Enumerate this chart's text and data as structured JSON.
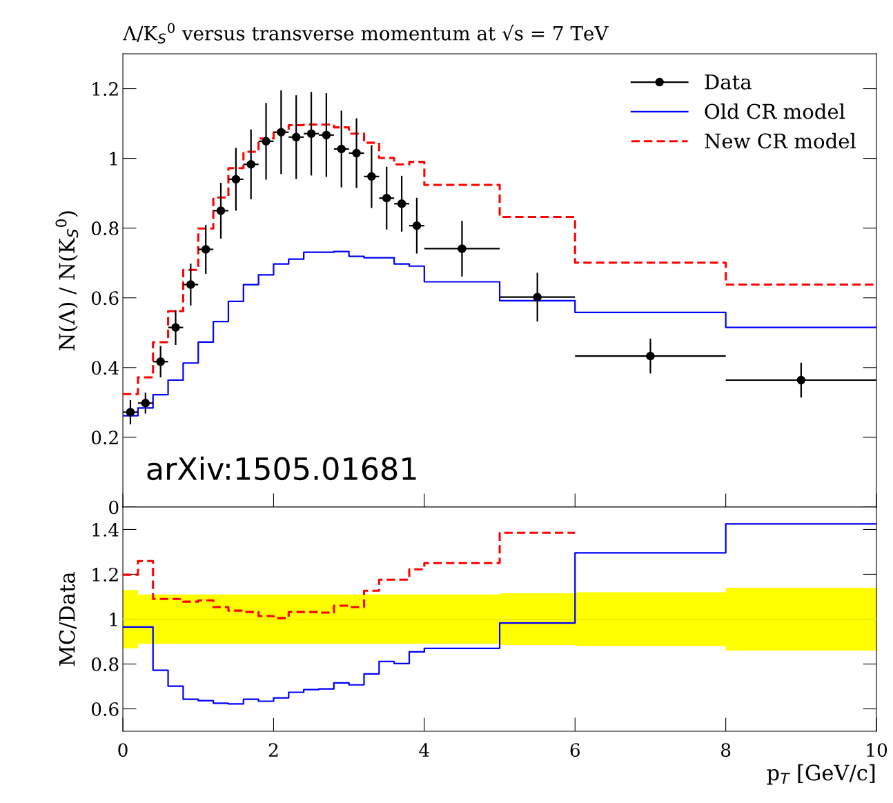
{
  "chart_data": [
    {
      "type": "step",
      "title": "Λ/K$_{S}$$^{0}$ versus transverse momentum at √s = 7 TeV",
      "ylabel": "N(Λ) / N(K$_{S}$$^{0}$)",
      "xlim": [
        0,
        10
      ],
      "xticks": [
        0,
        2,
        4,
        6,
        8,
        10
      ],
      "ylim": [
        0,
        1.3
      ],
      "yticks": [
        0,
        0.2,
        0.4,
        0.6,
        0.8,
        1,
        1.2
      ],
      "tick_labels": "y",
      "legend": "top right",
      "annotations": [
        "arXiv:1505.01681"
      ],
      "series": [
        {
          "name": "Data",
          "type": "scatter",
          "color": "#000000",
          "marker": "circle",
          "x": [
            0.1,
            0.3,
            0.5,
            0.7,
            0.9,
            1.1,
            1.3,
            1.5,
            1.7,
            1.9,
            2.1,
            2.3,
            2.5,
            2.7,
            2.9,
            3.1,
            3.3,
            3.5,
            3.7,
            3.9,
            4.5,
            5.5,
            7,
            9
          ],
          "values": [
            0.272,
            0.298,
            0.417,
            0.515,
            0.638,
            0.739,
            0.85,
            0.94,
            0.983,
            1.049,
            1.075,
            1.061,
            1.071,
            1.067,
            1.027,
            1.015,
            0.948,
            0.886,
            0.87,
            0.807,
            0.741,
            0.602,
            0.433,
            0.364
          ],
          "errors": [
            0.035,
            0.03,
            0.045,
            0.05,
            0.06,
            0.07,
            0.08,
            0.09,
            0.1,
            0.11,
            0.12,
            0.12,
            0.12,
            0.12,
            0.11,
            0.1,
            0.09,
            0.09,
            0.08,
            0.08,
            0.08,
            0.07,
            0.05,
            0.05
          ],
          "xerrors": [
            0.1,
            0.1,
            0.1,
            0.1,
            0.1,
            0.1,
            0.1,
            0.1,
            0.1,
            0.1,
            0.1,
            0.1,
            0.1,
            0.1,
            0.1,
            0.1,
            0.1,
            0.1,
            0.1,
            0.1,
            0.5,
            0.5,
            1,
            1
          ]
        },
        {
          "name": "Old CR model",
          "color": "#0000ff",
          "line_style": "solid",
          "x": [
            0,
            0.2,
            0.4,
            0.6,
            0.8,
            1.0,
            1.2,
            1.4,
            1.6,
            1.8,
            2.0,
            2.2,
            2.4,
            2.6,
            2.8,
            3.0,
            3.2,
            3.4,
            3.6,
            3.8,
            4,
            5,
            6,
            8,
            10
          ],
          "values": [
            0.262,
            0.284,
            0.322,
            0.364,
            0.413,
            0.473,
            0.532,
            0.59,
            0.638,
            0.666,
            0.697,
            0.711,
            0.731,
            0.731,
            0.733,
            0.719,
            0.715,
            0.715,
            0.697,
            0.691,
            0.646,
            0.592,
            0.558,
            0.515,
            0.515
          ]
        },
        {
          "name": "New CR model",
          "color": "#ff0000",
          "line_style": "dashed",
          "x": [
            0,
            0.2,
            0.4,
            0.6,
            0.8,
            1.0,
            1.2,
            1.4,
            1.6,
            1.8,
            2.0,
            2.2,
            2.4,
            2.6,
            2.8,
            3.0,
            3.2,
            3.4,
            3.6,
            3.8,
            4,
            5,
            6,
            8,
            10
          ],
          "values": [
            0.324,
            0.372,
            0.473,
            0.562,
            0.68,
            0.799,
            0.888,
            0.972,
            1.019,
            1.057,
            1.079,
            1.095,
            1.097,
            1.097,
            1.089,
            1.071,
            1.045,
            1.001,
            0.983,
            0.99,
            0.924,
            0.832,
            0.701,
            0.638,
            0.638
          ]
        }
      ]
    },
    {
      "type": "step",
      "ylabel": "MC/Data",
      "xlabel": "p$_{T}$ [GeV/c]",
      "xlim": [
        0,
        10
      ],
      "xticks": [
        0,
        2,
        4,
        6,
        8,
        10
      ],
      "ylim": [
        0.5,
        1.5
      ],
      "yticks": [
        0.6,
        0.8,
        1,
        1.2,
        1.4
      ],
      "ref_lines": [
        {
          "axis": "y",
          "value": 1,
          "color": "#000000"
        }
      ],
      "series": [
        {
          "color": "#ffff00",
          "line_style": "solid",
          "x": [
            0,
            0.2,
            0.4,
            0.6,
            0.8,
            1.0,
            1.2,
            1.4,
            1.6,
            1.8,
            2.0,
            2.2,
            2.4,
            2.6,
            2.8,
            3.0,
            3.2,
            3.4,
            3.6,
            3.8,
            4,
            5,
            6,
            8,
            10
          ],
          "values": [
            1,
            1,
            1,
            1,
            1,
            1,
            1,
            1,
            1,
            1,
            1,
            1,
            1,
            1,
            1,
            1,
            1,
            1,
            1,
            1,
            1,
            1,
            1,
            1,
            1
          ],
          "lower": [
            0.87,
            0.89,
            0.89,
            0.89,
            0.89,
            0.89,
            0.89,
            0.89,
            0.89,
            0.89,
            0.89,
            0.89,
            0.89,
            0.89,
            0.89,
            0.89,
            0.89,
            0.89,
            0.89,
            0.89,
            0.89,
            0.885,
            0.88,
            0.86,
            0.86
          ],
          "upper": [
            1.13,
            1.11,
            1.11,
            1.11,
            1.11,
            1.11,
            1.11,
            1.11,
            1.11,
            1.11,
            1.11,
            1.11,
            1.11,
            1.11,
            1.11,
            1.11,
            1.11,
            1.11,
            1.11,
            1.11,
            1.11,
            1.115,
            1.12,
            1.14,
            1.14
          ]
        },
        {
          "color": "#0000ff",
          "line_style": "solid",
          "x": [
            0,
            0.2,
            0.4,
            0.6,
            0.8,
            1.0,
            1.2,
            1.4,
            1.6,
            1.8,
            2.0,
            2.2,
            2.4,
            2.6,
            2.8,
            3.0,
            3.2,
            3.4,
            3.6,
            3.8,
            4,
            5,
            6,
            8,
            10
          ],
          "values": [
            0.965,
            0.965,
            0.772,
            0.701,
            0.643,
            0.637,
            0.625,
            0.622,
            0.643,
            0.634,
            0.649,
            0.674,
            0.686,
            0.689,
            0.716,
            0.707,
            0.756,
            0.811,
            0.802,
            0.854,
            0.87,
            0.983,
            1.296,
            1.425,
            1.425
          ]
        },
        {
          "color": "#ff0000",
          "line_style": "dashed",
          "x": [
            0,
            0.2,
            0.4,
            0.6,
            0.8,
            1.0,
            1.2,
            1.4,
            1.6,
            1.8,
            2.0,
            2.2,
            2.4,
            2.6,
            2.8,
            3.0,
            3.2,
            3.4,
            3.6,
            3.8,
            4,
            5,
            6
          ],
          "values": [
            1.198,
            1.259,
            1.09,
            1.09,
            1.078,
            1.084,
            1.054,
            1.038,
            1.032,
            1.014,
            1.005,
            1.032,
            1.032,
            1.029,
            1.06,
            1.054,
            1.127,
            1.176,
            1.176,
            1.222,
            1.25,
            1.385,
            1.385
          ]
        }
      ]
    }
  ]
}
